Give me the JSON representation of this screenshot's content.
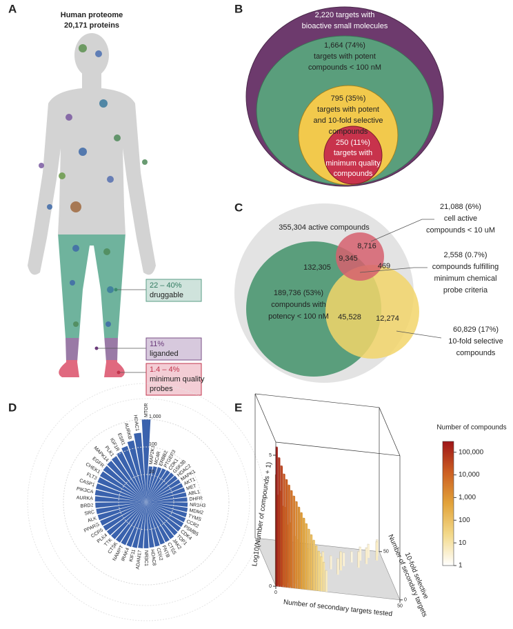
{
  "panel_a": {
    "label": "A",
    "title": [
      "Human proteome",
      "20,171 proteins"
    ],
    "callouts": [
      {
        "value": "22 – 40%",
        "text": [
          "druggable"
        ]
      },
      {
        "value": "11%",
        "text": [
          "liganded"
        ]
      },
      {
        "value": "1.4 – 4%",
        "text": [
          "minimum quality",
          "probes"
        ]
      }
    ]
  },
  "panel_b": {
    "label": "B",
    "circles": [
      {
        "lines": [
          "2,220 targets with",
          "bioactive small molecules"
        ]
      },
      {
        "lines": [
          "1,664  (74%)",
          "targets with potent",
          "compounds < 100 nM"
        ]
      },
      {
        "lines": [
          "795  (35%)",
          "targets with potent",
          "and 10-fold selective",
          "compounds"
        ]
      },
      {
        "lines": [
          "250  (11%)",
          "targets with",
          "minimum quality",
          "compounds"
        ]
      }
    ]
  },
  "panel_c": {
    "label": "C",
    "labels": [
      "355,304 active compounds",
      "8,716",
      "9,345",
      "132,305",
      "469",
      "189,736 (53%)",
      "compounds with",
      "potency < 100 nM",
      "45,528",
      "12,274"
    ],
    "annotations": [
      {
        "lines": [
          "21,088  (6%)",
          "cell active",
          "compounds  < 10 uM"
        ]
      },
      {
        "lines": [
          "2,558  (0.7%)",
          "compounds fulfilling",
          "minimum chemical",
          "probe criteria"
        ]
      },
      {
        "lines": [
          "60,829  (17%)",
          "10-fold selective",
          "compounds"
        ]
      }
    ]
  },
  "chart_data": [
    {
      "type": "radial_bar",
      "label": "D",
      "color": "#3a62ad",
      "log_scale": true,
      "categories": [
        "MTOR",
        "MAP2K1",
        "MC4R",
        "ERBB2",
        "PTGER3",
        "CDK1",
        "GSK3B",
        "HDAC2",
        "MAPK1",
        "AKT1",
        "MET",
        "ABL1",
        "DHFR",
        "NR1H3",
        "MDM2",
        "TYMS",
        "CCR2",
        "PSMB5",
        "CDK4",
        "TOP1",
        "JAK2",
        "CTSS",
        "FNTB",
        "CDK2",
        "HDAC8",
        "NR3C1",
        "ADAM17",
        "KIF11",
        "IRAK4",
        "NAMPT",
        "CTSK",
        "TTK",
        "PLK4",
        "CCR5",
        "PPARG",
        "ALK",
        "SRC",
        "BRD2",
        "AURKA",
        "PIK3CA",
        "CASP1",
        "FLT3",
        "CHEK1",
        "EGFR",
        "MAPK14",
        "PLK1",
        "IGF1R",
        "ESR1",
        "AURKB",
        "HDAC1"
      ],
      "values": [
        1000,
        20,
        21,
        22,
        23,
        24,
        25,
        26,
        27,
        28,
        29,
        30,
        31,
        32,
        33,
        34,
        35,
        36,
        37,
        38,
        40,
        41,
        42,
        44,
        45,
        47,
        48,
        50,
        52,
        54,
        56,
        58,
        60,
        62,
        64,
        66,
        68,
        70,
        72,
        75,
        78,
        81,
        84,
        88,
        92,
        97,
        110,
        140,
        190,
        330
      ],
      "rlim": [
        1,
        1000
      ],
      "rticks": [
        10,
        100,
        {
          "value": 1000,
          "label": "1,000"
        }
      ]
    },
    {
      "type": "bar3d",
      "label": "E",
      "xlabel": "Number of secondary targets tested",
      "ylabel": [
        "Number of secondary targets",
        "10-fold selective"
      ],
      "zlabel": "Log10(Number of compounds + 1)",
      "xlim": [
        0,
        50
      ],
      "ylim": [
        0,
        50
      ],
      "zlim": [
        0,
        5.5
      ],
      "xticks": [
        0,
        50
      ],
      "yticks": [
        0,
        50
      ],
      "zticks": [
        0,
        5
      ],
      "bars": {
        "x": [
          48,
          44,
          47,
          40,
          42,
          36,
          38,
          32,
          30,
          26,
          28,
          22,
          20,
          16,
          14,
          10,
          8,
          5,
          6,
          3,
          1,
          4,
          2,
          0,
          20,
          19,
          18,
          17,
          16,
          15,
          14,
          13,
          12,
          11,
          10,
          9,
          8,
          7,
          6,
          5,
          4,
          3,
          2,
          1,
          0
        ],
        "y": [
          45,
          42,
          40,
          38,
          35,
          35,
          30,
          30,
          25,
          25,
          20,
          20,
          15,
          15,
          10,
          10,
          5,
          5,
          2,
          2,
          2,
          1,
          1,
          1,
          0,
          0,
          0,
          0,
          0,
          0,
          0,
          0,
          0,
          0,
          0,
          0,
          0,
          0,
          0,
          0,
          0,
          0,
          0,
          0,
          0
        ],
        "z": [
          0.6,
          0.5,
          0.7,
          0.5,
          0.6,
          0.4,
          0.6,
          0.5,
          0.7,
          0.5,
          0.6,
          0.8,
          0.9,
          1.0,
          1.2,
          1.5,
          1.8,
          2.2,
          2.4,
          3.0,
          3.4,
          3.0,
          3.6,
          4.2,
          0.8,
          1.1,
          1.3,
          1.5,
          1.7,
          1.9,
          2.1,
          2.3,
          2.5,
          2.7,
          2.9,
          3.1,
          3.3,
          3.5,
          3.7,
          3.9,
          4.1,
          4.3,
          4.6,
          4.9,
          5.3
        ]
      },
      "colorbar": {
        "title": "Number of compounds",
        "lim": [
          1,
          300000
        ],
        "colors": [
          "#ffffff",
          "#f3d98a",
          "#e2a33a",
          "#cc5f22",
          "#9e1518"
        ],
        "ticks": [
          {
            "value": 100000,
            "label": "100,000"
          },
          {
            "value": 10000,
            "label": "10,000"
          },
          {
            "value": 1000,
            "label": "1,000"
          },
          100,
          10,
          1
        ]
      }
    }
  ]
}
